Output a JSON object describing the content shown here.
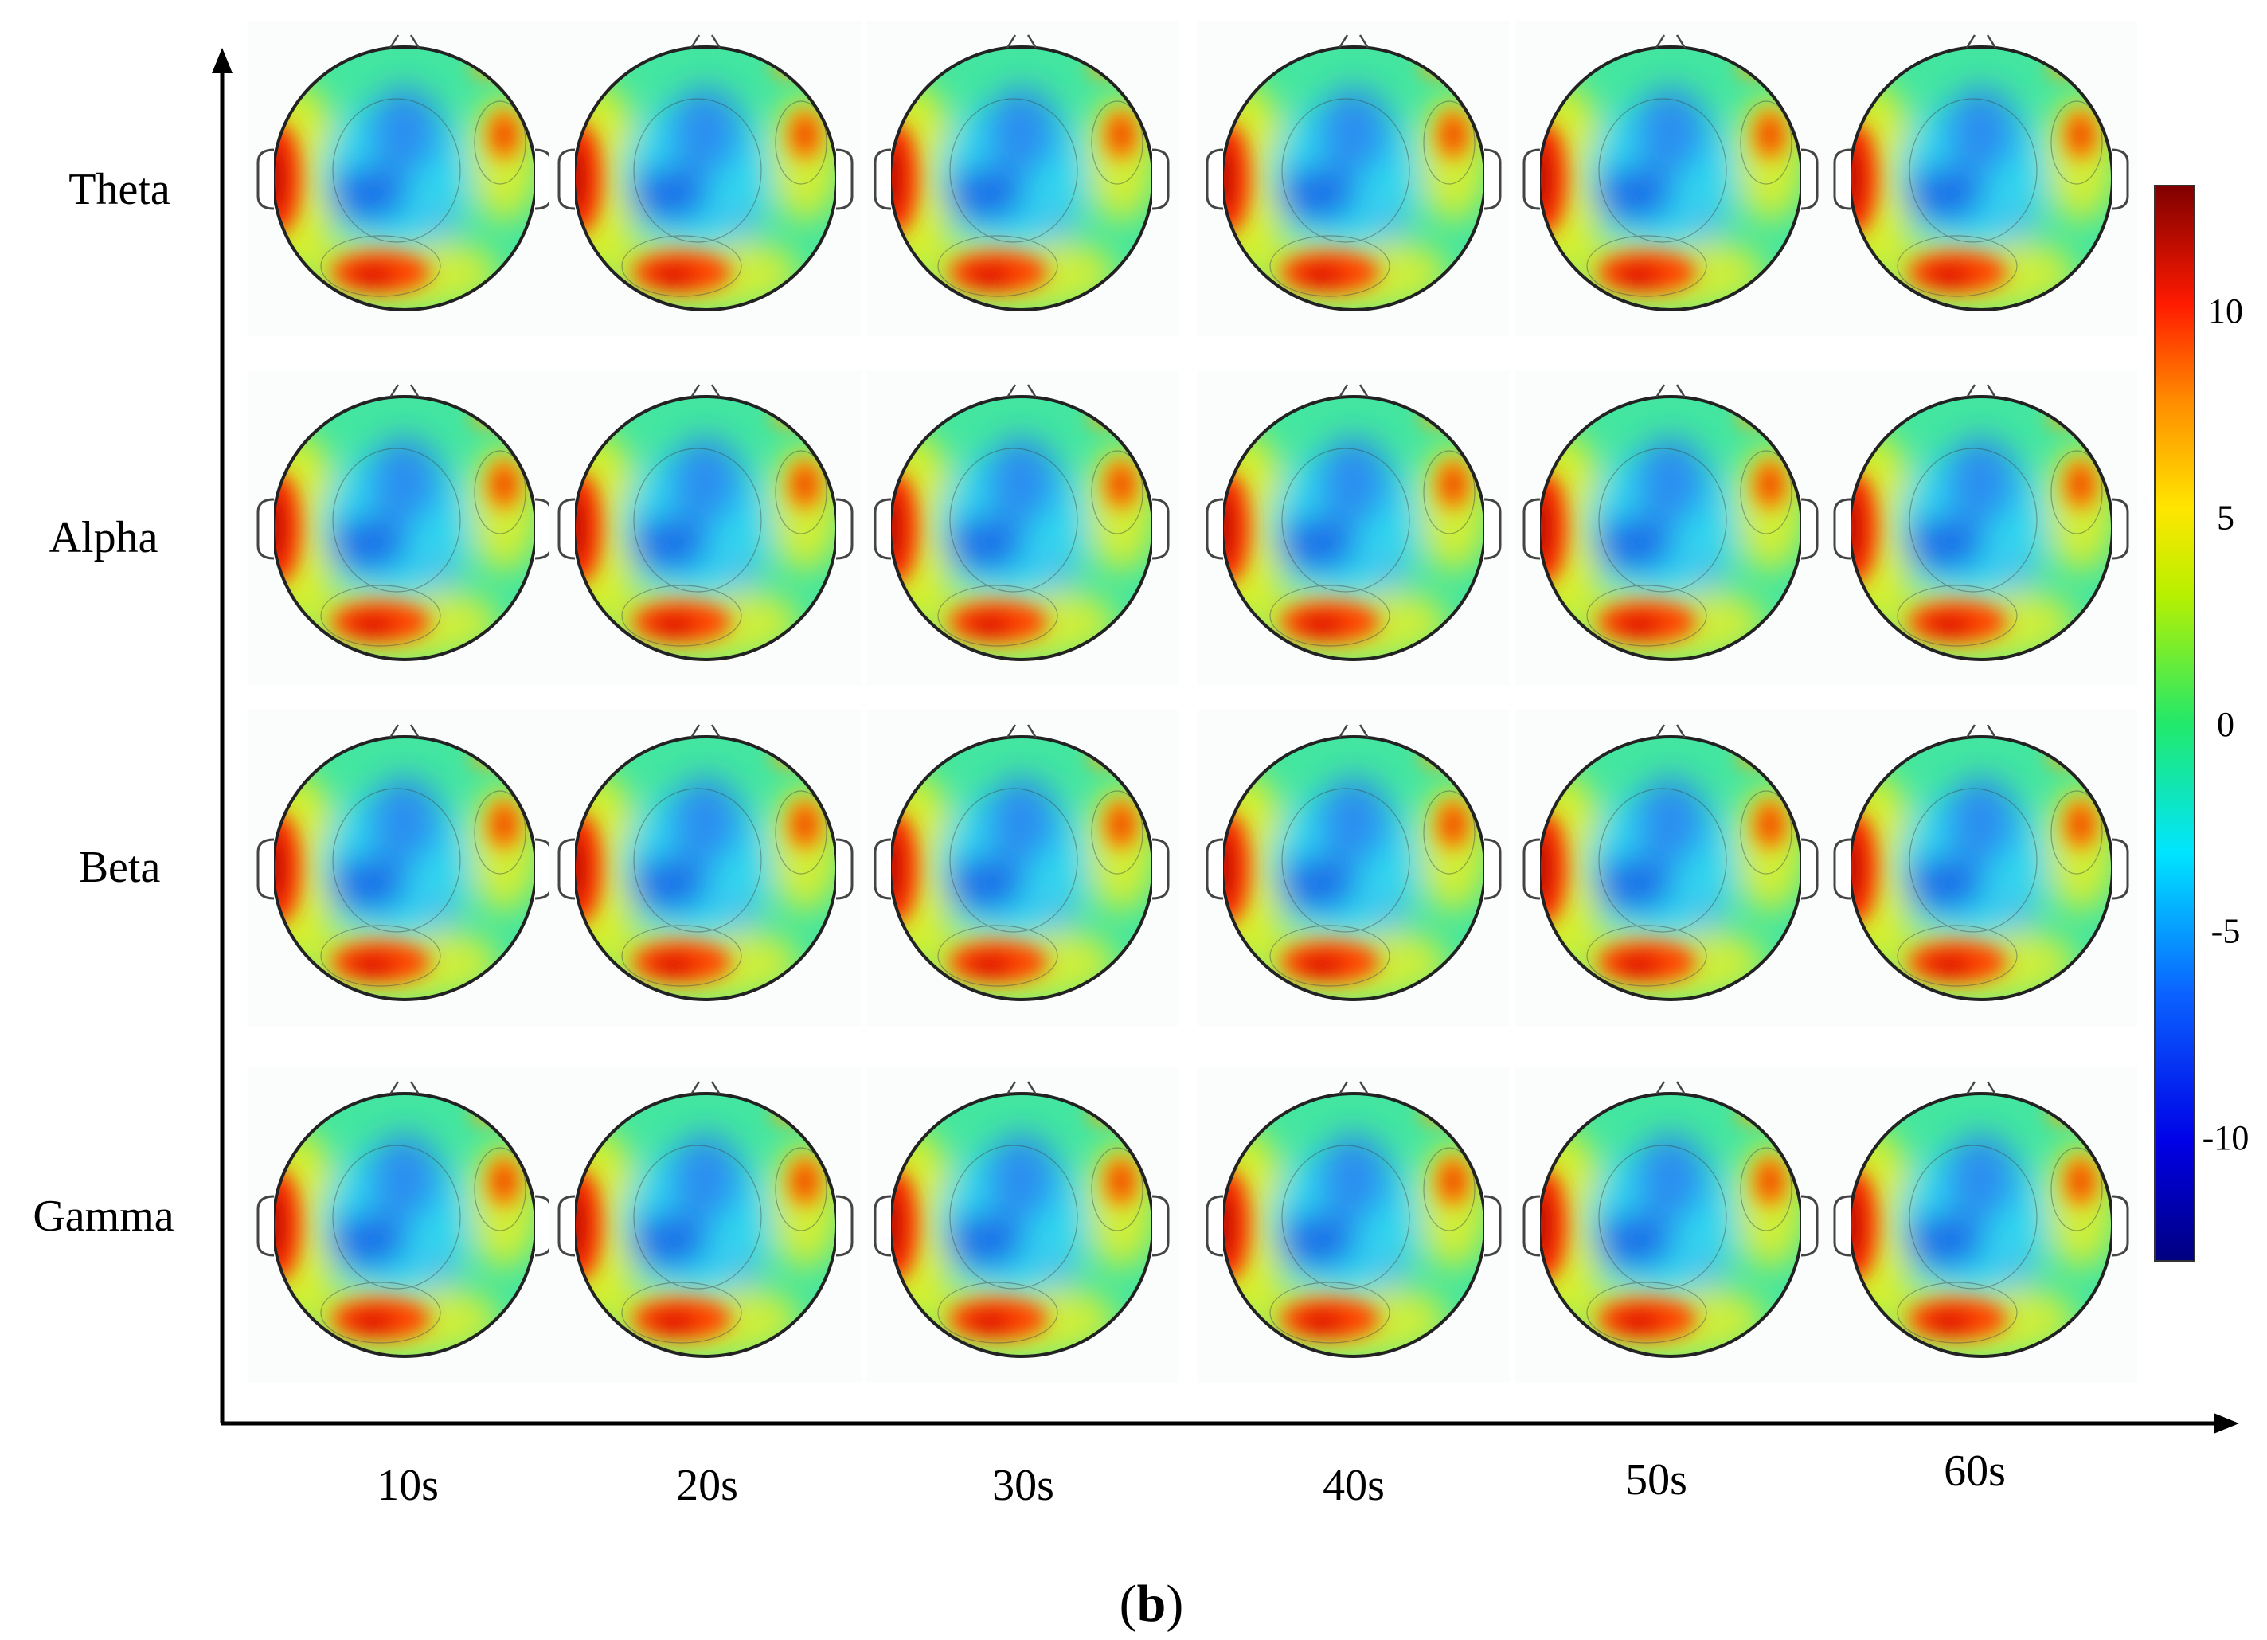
{
  "chart_data": {
    "type": "heatmap",
    "subtype": "eeg-topographic-map-grid",
    "rows": [
      "Theta",
      "Alpha",
      "Beta",
      "Gamma"
    ],
    "columns": [
      "10s",
      "20s",
      "30s",
      "40s",
      "50s",
      "60s"
    ],
    "colorbar": {
      "ticks": [
        10,
        5,
        0,
        -5,
        -10
      ],
      "range": [
        -13,
        13
      ],
      "colormap": "jet",
      "position": "right"
    },
    "axes": {
      "x_arrow": true,
      "y_arrow": true
    },
    "panel_label_open": "(",
    "panel_label_letter": "b",
    "panel_label_close": ")",
    "colors": {
      "max": "#7f0000",
      "high": "#ff1a00",
      "mid_high": "#ffd200",
      "zero": "#19e07a",
      "mid_low": "#19d6f0",
      "low": "#0c56e6",
      "min": "#00007f"
    }
  }
}
